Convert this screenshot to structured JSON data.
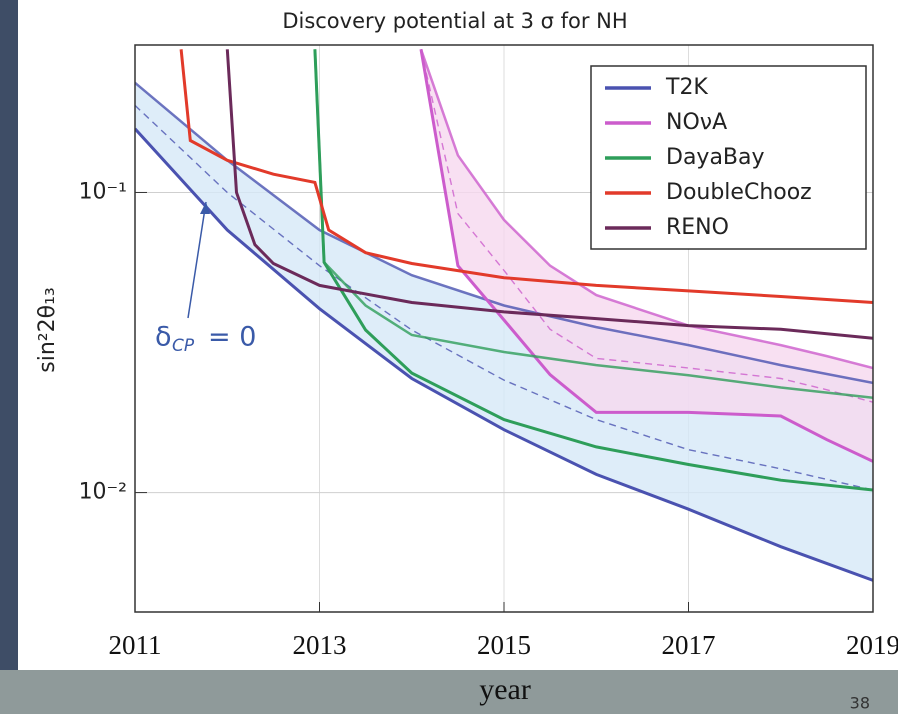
{
  "chart_data": {
    "type": "line",
    "title": "Discovery potential at 3 σ for NH",
    "x_label": "year",
    "y_label": "sin²2θ₁₃",
    "ylog": true,
    "grid": true,
    "legend": "upper right",
    "xlim": [
      2011,
      2019
    ],
    "xticks": [
      2011,
      2013,
      2015,
      2017,
      2019
    ],
    "ylim": [
      0.004,
      0.31
    ],
    "yticks": [
      {
        "value": 0.01,
        "label": "10⁻²"
      },
      {
        "value": 0.1,
        "label": "10⁻¹"
      }
    ],
    "annotation": {
      "symbol": "δ",
      "subscript": "CP",
      "text": "= 0"
    },
    "page_number": "38",
    "series": [
      {
        "name": "T2K",
        "color": "#4a52b0",
        "band_color": "#d6e9f8",
        "x": [
          2011,
          2012,
          2013,
          2014,
          2015,
          2016,
          2017,
          2018,
          2019
        ],
        "values": [
          0.163,
          0.075,
          0.041,
          0.024,
          0.0162,
          0.0115,
          0.0088,
          0.0066,
          0.0051
        ],
        "upper": [
          0.232,
          0.128,
          0.075,
          0.053,
          0.042,
          0.0356,
          0.031,
          0.0266,
          0.0232
        ],
        "dashed": [
          0.195,
          0.1,
          0.057,
          0.0348,
          0.0237,
          0.0175,
          0.0139,
          0.012,
          0.0102
        ]
      },
      {
        "name": "NOνA",
        "color": "#cc5ccc",
        "band_color": "#f6d8ef",
        "x": [
          2014.1,
          2014.5,
          2015,
          2015.5,
          2016,
          2017,
          2018,
          2018.5,
          2019
        ],
        "values": [
          0.3,
          0.057,
          0.0376,
          0.0247,
          0.0185,
          0.0185,
          0.018,
          0.015,
          0.0127
        ],
        "upper": [
          0.3,
          0.133,
          0.081,
          0.057,
          0.0455,
          0.036,
          0.031,
          0.0285,
          0.026
        ],
        "dashed": [
          0.3,
          0.085,
          0.055,
          0.035,
          0.028,
          0.026,
          0.024,
          0.022,
          0.02
        ]
      },
      {
        "name": "DayaBay",
        "color": "#2e9e5a",
        "x": [
          2012.95,
          2013.05,
          2013.5,
          2014,
          2015,
          2016,
          2017,
          2018,
          2019
        ],
        "values": [
          0.3,
          0.0585,
          0.0348,
          0.025,
          0.0175,
          0.0142,
          0.0124,
          0.011,
          0.0102
        ],
        "upper": [
          0.3,
          0.0585,
          0.042,
          0.0335,
          0.0294,
          0.0266,
          0.0246,
          0.0224,
          0.0207
        ]
      },
      {
        "name": "DoubleChooz",
        "color": "#e23a2a",
        "x": [
          2011.5,
          2011.6,
          2012,
          2012.5,
          2012.95,
          2013.1,
          2013.5,
          2014,
          2015,
          2016,
          2017,
          2018,
          2019
        ],
        "values": [
          0.3,
          0.149,
          0.128,
          0.115,
          0.108,
          0.075,
          0.063,
          0.058,
          0.052,
          0.049,
          0.047,
          0.045,
          0.043
        ]
      },
      {
        "name": "RENO",
        "color": "#6b2a5a",
        "x": [
          2012,
          2012.1,
          2012.3,
          2012.5,
          2013,
          2014,
          2015,
          2016,
          2017,
          2018,
          2019
        ],
        "values": [
          0.3,
          0.1,
          0.067,
          0.058,
          0.049,
          0.043,
          0.04,
          0.038,
          0.036,
          0.035,
          0.0327
        ]
      }
    ]
  }
}
